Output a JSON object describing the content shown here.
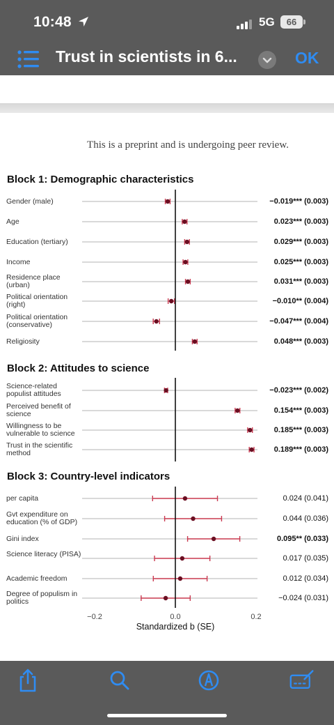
{
  "status": {
    "time": "10:48",
    "network": "5G",
    "battery": "66"
  },
  "nav": {
    "title": "Trust in scientists in 6...",
    "ok_label": "OK"
  },
  "doc": {
    "preprint_notice": "This is a preprint and is undergoing peer review."
  },
  "icons": {
    "location": "location-arrow-icon",
    "list": "list-icon",
    "chevron": "chevron-down-icon",
    "share": "share-icon",
    "search": "search-icon",
    "markup": "markup-pen-icon",
    "signature": "signature-icon"
  },
  "colors": {
    "point": "#6b0f22",
    "ci": "#c9384f",
    "accent": "#2f8cf2"
  },
  "chart_data": {
    "type": "forest",
    "xlabel": "Standardized b (SE)",
    "xlim": [
      -0.2,
      0.2
    ],
    "xticks": [
      "−0.2",
      "0.0",
      "0.2"
    ],
    "blocks": [
      {
        "title": "Block 1: Demographic characteristics",
        "rows": [
          {
            "label": "Gender (male)",
            "b": -0.019,
            "se": 0.003,
            "text": "−0.019*** (0.003)",
            "bold": true
          },
          {
            "label": "Age",
            "b": 0.023,
            "se": 0.003,
            "text": "0.023*** (0.003)",
            "bold": true
          },
          {
            "label": "Education (tertiary)",
            "b": 0.029,
            "se": 0.003,
            "text": "0.029*** (0.003)",
            "bold": true
          },
          {
            "label": "Income",
            "b": 0.025,
            "se": 0.003,
            "text": "0.025*** (0.003)",
            "bold": true
          },
          {
            "label": "Residence place (urban)",
            "b": 0.031,
            "se": 0.003,
            "text": "0.031*** (0.003)",
            "bold": true
          },
          {
            "label": "Political orientation (right)",
            "b": -0.01,
            "se": 0.004,
            "text": "−0.010** (0.004)",
            "bold": true
          },
          {
            "label": "Political orientation (conservative)",
            "b": -0.047,
            "se": 0.004,
            "text": "−0.047*** (0.004)",
            "bold": true
          },
          {
            "label": "Religiosity",
            "b": 0.048,
            "se": 0.003,
            "text": "0.048*** (0.003)",
            "bold": true
          }
        ]
      },
      {
        "title": "Block 2: Attitudes to science",
        "rows": [
          {
            "label": "Science-related populist attitudes",
            "b": -0.023,
            "se": 0.002,
            "text": "−0.023*** (0.002)",
            "bold": true
          },
          {
            "label": "Perceived benefit of science",
            "b": 0.154,
            "se": 0.003,
            "text": "0.154*** (0.003)",
            "bold": true
          },
          {
            "label": "Willingness to be vulnerable to science",
            "b": 0.185,
            "se": 0.003,
            "text": "0.185*** (0.003)",
            "bold": true
          },
          {
            "label": "Trust in the scientific method",
            "b": 0.189,
            "se": 0.003,
            "text": "0.189*** (0.003)",
            "bold": true
          }
        ]
      },
      {
        "title": "Block 3: Country-level indicators",
        "rows": [
          {
            "label": " per capita",
            "b": 0.024,
            "se": 0.041,
            "text": "0.024 (0.041)",
            "bold": false
          },
          {
            "label": "Gvt expenditure on education (% of GDP)",
            "b": 0.044,
            "se": 0.036,
            "text": "0.044 (0.036)",
            "bold": false
          },
          {
            "label": "Gini index",
            "b": 0.095,
            "se": 0.033,
            "text": "0.095** (0.033)",
            "bold": true
          },
          {
            "label": "Science literacy (PISA)",
            "b": 0.017,
            "se": 0.035,
            "text": "0.017 (0.035)",
            "bold": false
          },
          {
            "label": "Academic freedom",
            "b": 0.012,
            "se": 0.034,
            "text": "0.012 (0.034)",
            "bold": false
          },
          {
            "label": "Degree of populism in politics",
            "b": -0.024,
            "se": 0.031,
            "text": "−0.024 (0.031)",
            "bold": false
          }
        ]
      }
    ]
  }
}
